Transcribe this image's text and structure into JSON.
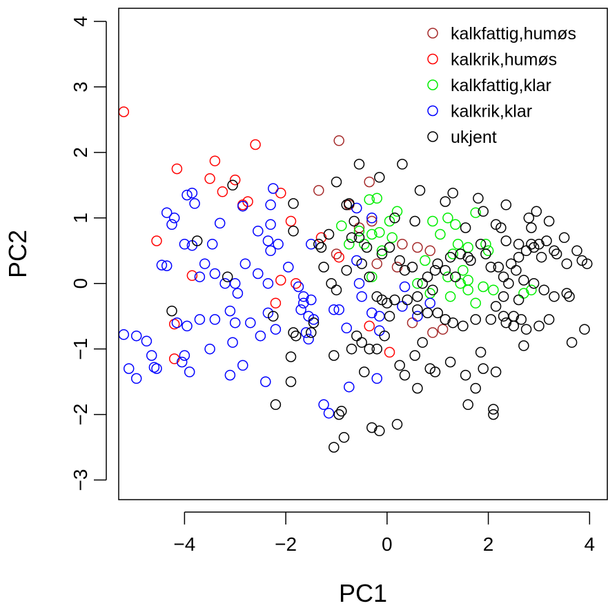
{
  "chart_data": {
    "type": "scatter",
    "xlabel": "PC1",
    "ylabel": "PC2",
    "xlim": [
      -5.3,
      4.35
    ],
    "ylim": [
      -3.3,
      4.2
    ],
    "xticks": [
      -4,
      -2,
      0,
      2,
      4
    ],
    "yticks": [
      -3,
      -2,
      -1,
      0,
      1,
      2,
      3,
      4
    ],
    "xtick_labels": [
      "−4",
      "−2",
      "0",
      "2",
      "4"
    ],
    "ytick_labels": [
      "−3",
      "−2",
      "−1",
      "0",
      "1",
      "2",
      "3",
      "4"
    ],
    "grid": false,
    "legend_position": "top-right",
    "marker": "open-circle",
    "series": [
      {
        "name": "kalkfattig,humøs",
        "color": "#A52A2A",
        "points": [
          [
            -0.95,
            2.18
          ],
          [
            -1.35,
            1.42
          ],
          [
            -0.35,
            1.55
          ],
          [
            -0.75,
            1.2
          ],
          [
            -0.55,
            0.85
          ],
          [
            0.6,
            0.55
          ],
          [
            0.85,
            0.5
          ],
          [
            -0.2,
            0.3
          ],
          [
            0.3,
            0.6
          ],
          [
            1.1,
            -0.7
          ],
          [
            0.9,
            -0.75
          ],
          [
            0.5,
            -0.6
          ],
          [
            -1.0,
            0.45
          ],
          [
            0.2,
            0.25
          ],
          [
            -0.3,
            0.95
          ]
        ]
      },
      {
        "name": "kalkrik,humøs",
        "color": "#FF0000",
        "points": [
          [
            -5.2,
            2.62
          ],
          [
            -2.6,
            2.12
          ],
          [
            -4.15,
            1.75
          ],
          [
            -3.4,
            1.87
          ],
          [
            -3.5,
            1.6
          ],
          [
            -3.0,
            1.58
          ],
          [
            -3.25,
            1.4
          ],
          [
            -2.75,
            1.25
          ],
          [
            -2.1,
            1.38
          ],
          [
            -2.85,
            1.2
          ],
          [
            -1.9,
            0.95
          ],
          [
            -4.55,
            0.65
          ],
          [
            -3.85,
            0.12
          ],
          [
            -2.1,
            0.05
          ],
          [
            -1.8,
            0.0
          ],
          [
            -2.2,
            -0.3
          ],
          [
            -4.2,
            -0.62
          ],
          [
            -4.2,
            -1.15
          ],
          [
            -0.35,
            -0.65
          ],
          [
            0.05,
            -1.05
          ],
          [
            -1.3,
            0.7
          ],
          [
            -0.95,
            0.4
          ]
        ]
      },
      {
        "name": "kalkfattig,klar",
        "color": "#00EE00",
        "points": [
          [
            -0.35,
            1.28
          ],
          [
            -0.2,
            1.3
          ],
          [
            0.2,
            1.1
          ],
          [
            0.05,
            0.95
          ],
          [
            -0.55,
            0.8
          ],
          [
            -0.3,
            0.75
          ],
          [
            -0.15,
            0.78
          ],
          [
            -0.9,
            0.88
          ],
          [
            -0.75,
            0.6
          ],
          [
            0.1,
            0.7
          ],
          [
            0.9,
            0.95
          ],
          [
            1.2,
            1.0
          ],
          [
            1.75,
            1.08
          ],
          [
            1.35,
            0.9
          ],
          [
            1.05,
            0.75
          ],
          [
            1.4,
            0.6
          ],
          [
            1.6,
            0.55
          ],
          [
            1.95,
            0.6
          ],
          [
            2.0,
            0.5
          ],
          [
            1.3,
            0.45
          ],
          [
            0.75,
            0.35
          ],
          [
            1.5,
            0.2
          ],
          [
            1.2,
            0.1
          ],
          [
            1.6,
            0.05
          ],
          [
            1.45,
            0.0
          ],
          [
            1.6,
            -0.1
          ],
          [
            1.9,
            -0.05
          ],
          [
            2.1,
            -0.1
          ],
          [
            1.25,
            -0.2
          ],
          [
            1.75,
            -0.3
          ],
          [
            0.85,
            -0.15
          ],
          [
            0.6,
            0.0
          ],
          [
            -0.1,
            0.5
          ],
          [
            -0.3,
            0.1
          ],
          [
            2.7,
            -0.15
          ],
          [
            2.85,
            -0.1
          ],
          [
            -0.45,
            0.6
          ]
        ]
      },
      {
        "name": "kalkrik,klar",
        "color": "#0000FF",
        "points": [
          [
            -5.2,
            -0.78
          ],
          [
            -4.95,
            -0.8
          ],
          [
            -4.75,
            -0.88
          ],
          [
            -5.1,
            -1.3
          ],
          [
            -4.95,
            -1.45
          ],
          [
            -4.65,
            -1.1
          ],
          [
            -4.6,
            -1.28
          ],
          [
            -4.55,
            -1.3
          ],
          [
            -4.0,
            -1.1
          ],
          [
            -4.05,
            -1.2
          ],
          [
            -3.9,
            -1.35
          ],
          [
            -3.5,
            -1.0
          ],
          [
            -3.1,
            -1.4
          ],
          [
            -2.85,
            -1.25
          ],
          [
            -3.05,
            -0.9
          ],
          [
            -2.7,
            -0.6
          ],
          [
            -2.5,
            -0.8
          ],
          [
            -2.35,
            -0.45
          ],
          [
            -2.2,
            -0.7
          ],
          [
            -2.4,
            -1.5
          ],
          [
            -3.1,
            -0.42
          ],
          [
            -3.0,
            -0.6
          ],
          [
            -3.4,
            -0.55
          ],
          [
            -3.7,
            -0.55
          ],
          [
            -4.15,
            -0.6
          ],
          [
            -3.95,
            -0.65
          ],
          [
            -4.45,
            0.28
          ],
          [
            -4.35,
            0.27
          ],
          [
            -4.0,
            0.6
          ],
          [
            -3.85,
            0.58
          ],
          [
            -3.6,
            0.3
          ],
          [
            -3.7,
            0.1
          ],
          [
            -3.4,
            0.15
          ],
          [
            -3.2,
            0.0
          ],
          [
            -3.0,
            0.0
          ],
          [
            -2.95,
            -0.15
          ],
          [
            -2.8,
            0.3
          ],
          [
            -2.55,
            0.15
          ],
          [
            -2.35,
            0.0
          ],
          [
            -2.15,
            0.6
          ],
          [
            -2.3,
            0.5
          ],
          [
            -2.35,
            0.65
          ],
          [
            -2.3,
            0.9
          ],
          [
            -2.3,
            1.2
          ],
          [
            -2.55,
            0.8
          ],
          [
            -2.85,
            1.18
          ],
          [
            -2.25,
            1.45
          ],
          [
            -3.3,
            0.92
          ],
          [
            -3.45,
            0.6
          ],
          [
            -3.85,
            1.38
          ],
          [
            -3.8,
            1.22
          ],
          [
            -3.95,
            1.35
          ],
          [
            -4.2,
            1.0
          ],
          [
            -4.25,
            0.9
          ],
          [
            -4.35,
            1.08
          ],
          [
            -1.95,
            0.25
          ],
          [
            -1.75,
            -0.05
          ],
          [
            -1.65,
            -0.3
          ],
          [
            -1.55,
            -0.5
          ],
          [
            -1.45,
            -0.55
          ],
          [
            -1.7,
            -0.4
          ],
          [
            -1.6,
            -0.75
          ],
          [
            -1.55,
            -0.85
          ],
          [
            -1.65,
            -0.2
          ],
          [
            -1.5,
            -0.25
          ],
          [
            -1.25,
            -1.85
          ],
          [
            -1.15,
            -1.98
          ],
          [
            -0.75,
            -1.58
          ],
          [
            -0.95,
            -0.4
          ],
          [
            -0.8,
            -0.68
          ],
          [
            -0.5,
            -0.2
          ],
          [
            -0.55,
            0.0
          ],
          [
            -0.3,
            -0.45
          ],
          [
            -0.15,
            -0.5
          ],
          [
            -0.15,
            -0.72
          ],
          [
            -0.2,
            -1.45
          ],
          [
            -0.6,
            0.35
          ],
          [
            -0.3,
            1.0
          ],
          [
            -0.6,
            1.15
          ],
          [
            0.3,
            -0.35
          ],
          [
            0.6,
            -0.5
          ],
          [
            0.85,
            -0.3
          ],
          [
            0.35,
            -0.05
          ],
          [
            -1.5,
            0.6
          ],
          [
            -1.05,
            -0.4
          ]
        ]
      },
      {
        "name": "ukjent",
        "color": "#000000",
        "points": [
          [
            -0.55,
            1.82
          ],
          [
            0.3,
            1.82
          ],
          [
            -1.0,
            1.55
          ],
          [
            -0.15,
            1.62
          ],
          [
            -0.8,
            1.2
          ],
          [
            -0.75,
            1.22
          ],
          [
            0.65,
            1.42
          ],
          [
            1.3,
            1.38
          ],
          [
            1.8,
            1.3
          ],
          [
            2.35,
            1.2
          ],
          [
            1.15,
            1.25
          ],
          [
            1.9,
            1.1
          ],
          [
            0.55,
            0.95
          ],
          [
            1.55,
            0.85
          ],
          [
            2.15,
            0.9
          ],
          [
            2.25,
            0.85
          ],
          [
            2.8,
            1.0
          ],
          [
            2.95,
            1.1
          ],
          [
            3.2,
            0.95
          ],
          [
            2.85,
            0.85
          ],
          [
            1.85,
            0.6
          ],
          [
            1.95,
            0.45
          ],
          [
            2.35,
            0.65
          ],
          [
            2.6,
            0.6
          ],
          [
            2.85,
            0.6
          ],
          [
            3.15,
            0.65
          ],
          [
            3.0,
            0.6
          ],
          [
            2.9,
            0.55
          ],
          [
            3.3,
            0.5
          ],
          [
            3.35,
            0.45
          ],
          [
            3.5,
            0.7
          ],
          [
            3.05,
            0.4
          ],
          [
            2.75,
            0.5
          ],
          [
            2.6,
            0.4
          ],
          [
            2.45,
            0.3
          ],
          [
            2.55,
            0.2
          ],
          [
            2.2,
            0.25
          ],
          [
            2.05,
            0.25
          ],
          [
            1.65,
            0.35
          ],
          [
            1.45,
            0.45
          ],
          [
            1.6,
            0.4
          ],
          [
            1.25,
            0.4
          ],
          [
            1.0,
            0.3
          ],
          [
            0.95,
            0.2
          ],
          [
            1.15,
            0.2
          ],
          [
            1.35,
            0.1
          ],
          [
            0.8,
            0.1
          ],
          [
            0.5,
            0.25
          ],
          [
            0.25,
            0.35
          ],
          [
            0.35,
            0.2
          ],
          [
            0.7,
            0.0
          ],
          [
            0.9,
            -0.1
          ],
          [
            0.6,
            -0.2
          ],
          [
            0.4,
            -0.25
          ],
          [
            0.15,
            -0.25
          ],
          [
            -0.1,
            -0.25
          ],
          [
            0.0,
            -0.3
          ],
          [
            0.6,
            -0.4
          ],
          [
            0.8,
            -0.45
          ],
          [
            1.0,
            -0.45
          ],
          [
            1.15,
            -0.55
          ],
          [
            1.3,
            -0.6
          ],
          [
            1.5,
            -0.65
          ],
          [
            1.75,
            -0.55
          ],
          [
            2.05,
            -0.55
          ],
          [
            2.3,
            -0.5
          ],
          [
            2.5,
            -0.5
          ],
          [
            2.65,
            -0.55
          ],
          [
            2.75,
            -0.7
          ],
          [
            2.5,
            -0.65
          ],
          [
            2.35,
            -0.6
          ],
          [
            2.15,
            -0.35
          ],
          [
            2.3,
            -0.2
          ],
          [
            2.6,
            -0.25
          ],
          [
            2.4,
            0.0
          ],
          [
            2.3,
            0.1
          ],
          [
            2.7,
            0.05
          ],
          [
            2.9,
            0.0
          ],
          [
            3.1,
            -0.1
          ],
          [
            3.3,
            -0.2
          ],
          [
            3.55,
            -0.15
          ],
          [
            3.6,
            -0.2
          ],
          [
            3.2,
            -0.55
          ],
          [
            3.0,
            -0.65
          ],
          [
            3.55,
            0.3
          ],
          [
            3.75,
            0.5
          ],
          [
            3.85,
            0.35
          ],
          [
            3.95,
            0.3
          ],
          [
            3.9,
            -0.7
          ],
          [
            3.65,
            -0.9
          ],
          [
            2.7,
            -0.95
          ],
          [
            1.9,
            -1.3
          ],
          [
            2.15,
            -1.35
          ],
          [
            1.85,
            -1.05
          ],
          [
            1.25,
            -1.2
          ],
          [
            1.55,
            -1.4
          ],
          [
            1.75,
            -1.6
          ],
          [
            1.6,
            -1.85
          ],
          [
            2.1,
            -1.92
          ],
          [
            2.1,
            -2.0
          ],
          [
            0.85,
            -1.3
          ],
          [
            0.95,
            -1.35
          ],
          [
            0.7,
            -0.9
          ],
          [
            0.55,
            -1.1
          ],
          [
            0.35,
            -1.4
          ],
          [
            0.25,
            -1.25
          ],
          [
            0.6,
            -1.6
          ],
          [
            0.2,
            -2.15
          ],
          [
            -0.3,
            -2.2
          ],
          [
            -0.15,
            -2.25
          ],
          [
            -0.45,
            -1.35
          ],
          [
            -0.6,
            -0.8
          ],
          [
            -0.7,
            -1.0
          ],
          [
            -0.5,
            -0.9
          ],
          [
            -0.35,
            -1.0
          ],
          [
            -0.2,
            -1.0
          ],
          [
            -0.05,
            -0.8
          ],
          [
            0.05,
            -0.5
          ],
          [
            -0.2,
            -0.2
          ],
          [
            -0.35,
            0.1
          ],
          [
            -0.5,
            0.3
          ],
          [
            -0.8,
            0.2
          ],
          [
            -1.0,
            -0.1
          ],
          [
            -1.1,
            0.0
          ],
          [
            -1.25,
            0.25
          ],
          [
            -1.35,
            0.6
          ],
          [
            -1.15,
            0.75
          ],
          [
            -1.3,
            0.55
          ],
          [
            -1.45,
            -0.6
          ],
          [
            -1.5,
            -0.75
          ],
          [
            -1.05,
            -1.1
          ],
          [
            -0.9,
            -1.95
          ],
          [
            -0.95,
            -2.0
          ],
          [
            -0.85,
            -2.35
          ],
          [
            -1.05,
            -2.5
          ],
          [
            -2.2,
            -1.85
          ],
          [
            -1.9,
            -1.5
          ],
          [
            -1.9,
            -1.12
          ],
          [
            -1.8,
            -0.8
          ],
          [
            -1.85,
            -0.75
          ],
          [
            -2.25,
            -0.5
          ],
          [
            -4.25,
            -0.42
          ],
          [
            -3.75,
            0.65
          ],
          [
            -3.15,
            0.1
          ],
          [
            -3.05,
            1.5
          ],
          [
            -1.85,
            0.8
          ],
          [
            -1.85,
            1.22
          ],
          [
            -0.1,
            0.45
          ],
          [
            0.05,
            0.55
          ],
          [
            -0.4,
            0.55
          ],
          [
            -0.55,
            0.7
          ],
          [
            -0.7,
            0.7
          ],
          [
            -0.65,
            0.95
          ],
          [
            0.15,
            1.0
          ]
        ]
      }
    ]
  }
}
